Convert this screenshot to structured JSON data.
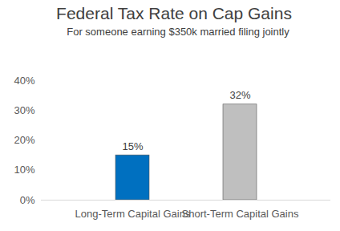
{
  "chart_data": {
    "type": "bar",
    "title": "Federal Tax Rate on Cap Gains",
    "subtitle": "For someone earning $350k married filing jointly",
    "categories": [
      "Long-Term Capital Gains",
      "Short-Term Capital Gains"
    ],
    "values": [
      15,
      32
    ],
    "value_labels": [
      "15%",
      "32%"
    ],
    "colors": [
      "#0070c0",
      "#bfbfbf"
    ],
    "ylim": [
      0,
      40
    ],
    "yticks": [
      {
        "value": 0,
        "label": "0%"
      },
      {
        "value": 10,
        "label": "10%"
      },
      {
        "value": 20,
        "label": "20%"
      },
      {
        "value": 30,
        "label": "30%"
      },
      {
        "value": 40,
        "label": "40%"
      }
    ],
    "grid": false,
    "data_labels": true
  }
}
